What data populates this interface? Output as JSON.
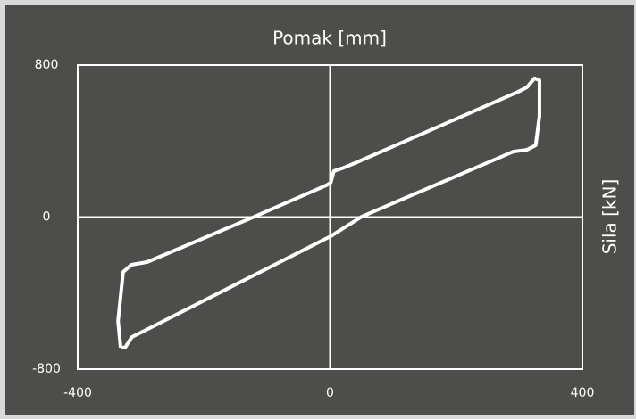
{
  "chart_data": {
    "type": "line",
    "xlabel": "Pomak [mm]",
    "ylabel": "Sila [kN]",
    "x": [
      -332,
      -336,
      -328,
      -315,
      -290,
      -120,
      -6,
      1,
      6,
      22,
      43,
      298,
      312,
      324,
      332,
      332,
      326,
      312,
      291,
      50,
      1,
      -297,
      -314,
      -325,
      -332
    ],
    "series": [
      {
        "color": "#ffffff",
        "values": [
          -687,
          -547,
          -289,
          -251,
          -237,
          2,
          167,
          181,
          242,
          260,
          289,
          659,
          683,
          730,
          720,
          533,
          378,
          354,
          345,
          2,
          -101,
          -603,
          -631,
          -687,
          -687
        ]
      }
    ],
    "xlim": [
      -400,
      400
    ],
    "xticks": [
      -400,
      0,
      400
    ],
    "ylim": [
      -800,
      800
    ],
    "yticks": [
      -800,
      0,
      800
    ],
    "grid": true
  }
}
